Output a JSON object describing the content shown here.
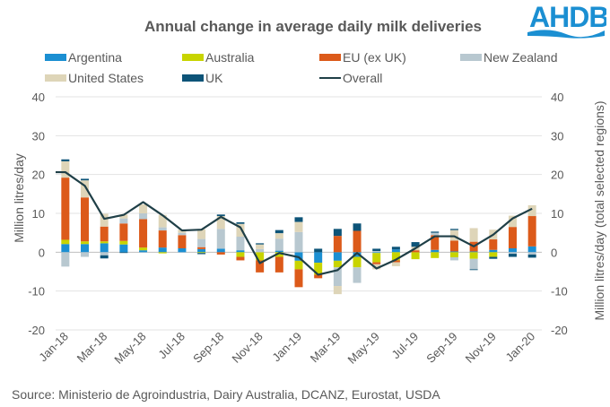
{
  "chart_data": {
    "type": "bar",
    "subtype": "stacked-bar-with-line",
    "title": "Annual change in average daily milk deliveries",
    "ylabel": "Million litres/day",
    "y2label": "Million litres/day (total selected regions)",
    "xlabel": "",
    "ylim": [
      -20,
      40
    ],
    "y2lim": [
      -20,
      40
    ],
    "yticks": [
      -20,
      -10,
      0,
      10,
      20,
      30,
      40
    ],
    "grid": true,
    "legend_position": "top",
    "categories": [
      "Jan-18",
      "Feb-18",
      "Mar-18",
      "Apr-18",
      "May-18",
      "Jun-18",
      "Jul-18",
      "Aug-18",
      "Sep-18",
      "Oct-18",
      "Nov-18",
      "Dec-18",
      "Jan-19",
      "Feb-19",
      "Mar-19",
      "Apr-19",
      "May-19",
      "Jun-19",
      "Jul-19",
      "Aug-19",
      "Sep-19",
      "Oct-19",
      "Nov-19",
      "Dec-19",
      "Jan-20"
    ],
    "xtick_labels": [
      "Jan-18",
      "Mar-18",
      "May-18",
      "Jul-18",
      "Sep-18",
      "Nov-18",
      "Jan-19",
      "Mar-19",
      "May-19",
      "Jul-19",
      "Sep-19",
      "Nov-19",
      "Jan-20"
    ],
    "series": [
      {
        "name": "Argentina",
        "color": "#1B8FD2",
        "values": [
          2.1,
          2.1,
          2.3,
          2.0,
          0.5,
          1.2,
          1.0,
          0.8,
          0.9,
          0.5,
          0.0,
          0.4,
          -2.2,
          -2.7,
          -2.2,
          -1.2,
          -0.2,
          0.7,
          0.0,
          0.6,
          0.2,
          0.2,
          0.6,
          1.0,
          1.5
        ]
      },
      {
        "name": "Australia",
        "color": "#C8D400",
        "values": [
          1.1,
          0.7,
          0.5,
          0.9,
          0.7,
          -0.3,
          0.0,
          -0.2,
          0.0,
          -1.2,
          -2.1,
          -1.2,
          -2.2,
          -3.1,
          -1.7,
          -2.7,
          -2.4,
          -2.1,
          -1.8,
          -1.5,
          -1.3,
          -1.7,
          -1.2,
          0.0,
          0.0
        ]
      },
      {
        "name": "EU (ex UK)",
        "color": "#DC5A1A",
        "values": [
          16.0,
          11.3,
          3.8,
          4.5,
          7.3,
          4.4,
          3.4,
          0.5,
          -0.6,
          -0.9,
          -3.1,
          -4.0,
          -4.6,
          -0.9,
          4.2,
          5.5,
          -0.5,
          -0.5,
          0.5,
          3.8,
          2.8,
          2.5,
          2.7,
          5.5,
          7.8
        ]
      },
      {
        "name": "New Zealand",
        "color": "#B8C8D0",
        "values": [
          -3.7,
          -1.2,
          -0.8,
          1.3,
          1.5,
          0.8,
          0.6,
          2.1,
          5.1,
          3.5,
          0.8,
          3.1,
          5.2,
          0.0,
          -4.8,
          -4.0,
          0.3,
          0.0,
          0.0,
          0.6,
          -0.8,
          -2.7,
          0.0,
          -0.4,
          -0.6
        ]
      },
      {
        "name": "United States",
        "color": "#DED5B8",
        "values": [
          4.2,
          4.4,
          3.3,
          1.0,
          2.3,
          3.2,
          0.8,
          2.5,
          3.3,
          3.3,
          1.2,
          1.4,
          2.6,
          0.0,
          -2.1,
          0.0,
          -1.3,
          -1.0,
          0.9,
          0.0,
          2.7,
          3.5,
          2.5,
          2.9,
          2.8
        ]
      },
      {
        "name": "UK",
        "color": "#0D5478",
        "values": [
          0.5,
          0.4,
          -0.8,
          -0.2,
          0.0,
          0.0,
          0.0,
          -0.3,
          0.4,
          0.4,
          0.3,
          0.8,
          1.2,
          0.9,
          1.8,
          1.9,
          0.6,
          0.7,
          1.2,
          0.3,
          0.3,
          -0.2,
          -0.5,
          -0.8,
          -0.8
        ]
      }
    ],
    "line": {
      "name": "Overall",
      "color": "#1F3F47",
      "values": [
        20.6,
        17.1,
        8.6,
        9.6,
        12.9,
        9.5,
        5.6,
        5.8,
        9.1,
        6.4,
        -2.8,
        -0.2,
        -1.3,
        -5.8,
        -4.6,
        -0.2,
        -4.2,
        -1.9,
        1.0,
        4.1,
        4.1,
        1.5,
        4.5,
        8.7,
        11.2
      ]
    }
  },
  "page": {
    "title": "Annual change in average daily milk deliveries",
    "logo_text": "AHDB",
    "source": "Source: Ministerio de Agroindustria, Dairy Australia, DCANZ,  Eurostat, USDA",
    "legend": [
      {
        "label": "Argentina",
        "type": "bar",
        "color": "#1B8FD2"
      },
      {
        "label": "Australia",
        "type": "bar",
        "color": "#C8D400"
      },
      {
        "label": "EU (ex UK)",
        "type": "bar",
        "color": "#DC5A1A"
      },
      {
        "label": "New Zealand",
        "type": "bar",
        "color": "#B8C8D0"
      },
      {
        "label": "United States",
        "type": "bar",
        "color": "#DED5B8"
      },
      {
        "label": "UK",
        "type": "bar",
        "color": "#0D5478"
      },
      {
        "label": "Overall",
        "type": "line",
        "color": "#1F3F47"
      }
    ],
    "y_tick_labels": [
      "40",
      "30",
      "20",
      "10",
      "0",
      "-10",
      "-20"
    ],
    "ylabel_left": "Million litres/day",
    "ylabel_right": "Million litres/day (total selected regions)",
    "logo_color": "#1B8FD2"
  }
}
